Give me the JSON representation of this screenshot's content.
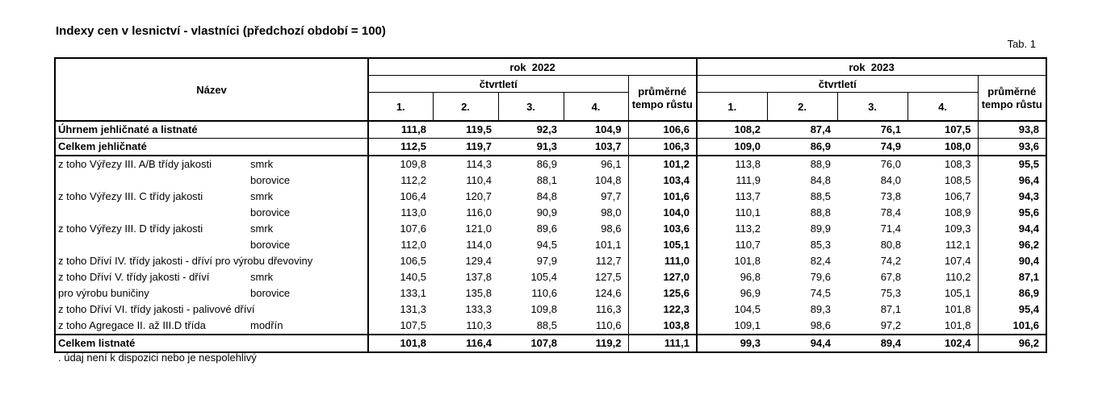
{
  "title": "Indexy cen v lesnictví - vlastníci (předchozí období = 100)",
  "tab_label": "Tab. 1",
  "footnote": ". údaj není k dispozici nebo je nespolehlivý",
  "colors": {
    "text": "#000000",
    "border": "#000000",
    "background": "#ffffff"
  },
  "header": {
    "name_col": "Název",
    "year_2022": "rok  2022",
    "year_2023": "rok  2023",
    "quarters_label_2022": "čtvrtletí",
    "quarters_label_2023": "čtvrtletí",
    "avg_label_2022": "průměrné tempo růstu",
    "avg_label_2023": "průměrné tempo růstu",
    "quarters": [
      "1.",
      "2.",
      "3.",
      "4."
    ]
  },
  "table": {
    "rows": [
      {
        "label": "Úhrnem jehličnaté a listnaté",
        "species": "",
        "bold": true,
        "v2022": [
          "111,8",
          "119,5",
          "92,3",
          "104,9",
          "106,6"
        ],
        "v2023": [
          "108,2",
          "87,4",
          "76,1",
          "107,5",
          "93,8"
        ]
      },
      {
        "label": "Celkem jehličnaté",
        "species": "",
        "bold": true,
        "v2022": [
          "112,5",
          "119,7",
          "91,3",
          "103,7",
          "106,3"
        ],
        "v2023": [
          "109,0",
          "86,9",
          "74,9",
          "108,0",
          "93,6"
        ]
      },
      {
        "label": "z toho Výřezy III. A/B třídy jakosti",
        "species": "smrk",
        "bold": false,
        "v2022": [
          "109,8",
          "114,3",
          "86,9",
          "96,1",
          "101,2"
        ],
        "v2023": [
          "113,8",
          "88,9",
          "76,0",
          "108,3",
          "95,5"
        ]
      },
      {
        "label": "",
        "species": "borovice",
        "bold": false,
        "v2022": [
          "112,2",
          "110,4",
          "88,1",
          "104,8",
          "103,4"
        ],
        "v2023": [
          "111,9",
          "84,8",
          "84,0",
          "108,5",
          "96,4"
        ]
      },
      {
        "label": "z toho Výřezy III. C třídy jakosti",
        "species": "smrk",
        "bold": false,
        "v2022": [
          "106,4",
          "120,7",
          "84,8",
          "97,7",
          "101,6"
        ],
        "v2023": [
          "113,7",
          "88,5",
          "73,8",
          "106,7",
          "94,3"
        ]
      },
      {
        "label": "",
        "species": "borovice",
        "bold": false,
        "v2022": [
          "113,0",
          "116,0",
          "90,9",
          "98,0",
          "104,0"
        ],
        "v2023": [
          "110,1",
          "88,8",
          "78,4",
          "108,9",
          "95,6"
        ]
      },
      {
        "label": "z toho Výřezy III. D třídy jakosti",
        "species": "smrk",
        "bold": false,
        "v2022": [
          "107,6",
          "121,0",
          "89,6",
          "98,6",
          "103,6"
        ],
        "v2023": [
          "113,2",
          "89,9",
          "71,4",
          "109,3",
          "94,4"
        ]
      },
      {
        "label": "",
        "species": "borovice",
        "bold": false,
        "v2022": [
          "112,0",
          "114,0",
          "94,5",
          "101,1",
          "105,1"
        ],
        "v2023": [
          "110,7",
          "85,3",
          "80,8",
          "112,1",
          "96,2"
        ]
      },
      {
        "label": "z toho Dříví IV. třídy jakosti - dříví pro výrobu dřevoviny",
        "species": "",
        "bold": false,
        "v2022": [
          "106,5",
          "129,4",
          "97,9",
          "112,7",
          "111,0"
        ],
        "v2023": [
          "101,8",
          "82,4",
          "74,2",
          "107,4",
          "90,4"
        ]
      },
      {
        "label": "z toho Dříví V. třídy jakosti - dříví",
        "species": "smrk",
        "bold": false,
        "v2022": [
          "140,5",
          "137,8",
          "105,4",
          "127,5",
          "127,0"
        ],
        "v2023": [
          "96,8",
          "79,6",
          "67,8",
          "110,2",
          "87,1"
        ]
      },
      {
        "label": "pro výrobu buničiny",
        "species": "borovice",
        "bold": false,
        "v2022": [
          "133,1",
          "135,8",
          "110,6",
          "124,6",
          "125,6"
        ],
        "v2023": [
          "96,9",
          "74,5",
          "75,3",
          "105,1",
          "86,9"
        ]
      },
      {
        "label": "z toho Dříví VI. třídy jakosti - palivové dříví",
        "species": "",
        "bold": false,
        "v2022": [
          "131,3",
          "133,3",
          "109,8",
          "116,3",
          "122,3"
        ],
        "v2023": [
          "104,5",
          "89,3",
          "87,1",
          "101,8",
          "95,4"
        ]
      },
      {
        "label": "z toho Agregace II. až III.D třída",
        "species": "modřín",
        "bold": false,
        "v2022": [
          "107,5",
          "110,3",
          "88,5",
          "110,6",
          "103,8"
        ],
        "v2023": [
          "109,1",
          "98,6",
          "97,2",
          "101,8",
          "101,6"
        ]
      },
      {
        "label": "Celkem listnaté",
        "species": "",
        "bold": true,
        "v2022": [
          "101,8",
          "116,4",
          "107,8",
          "119,2",
          "111,1"
        ],
        "v2023": [
          "99,3",
          "94,4",
          "89,4",
          "102,4",
          "96,2"
        ]
      }
    ]
  }
}
